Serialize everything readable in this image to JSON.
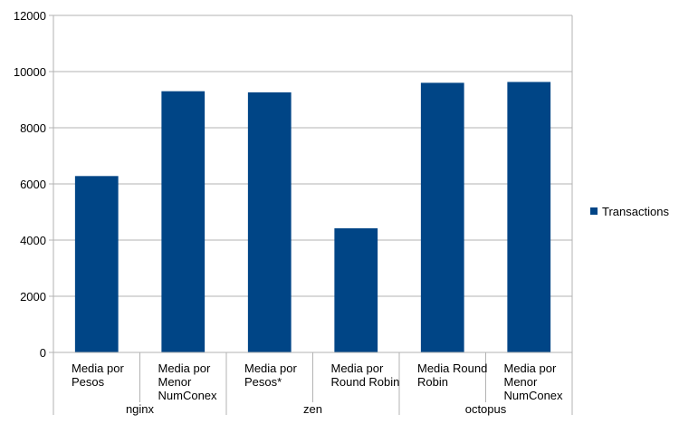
{
  "chart_data": {
    "type": "bar",
    "categories": [
      [
        "Media por",
        "Pesos"
      ],
      [
        "Media por",
        "Menor",
        "NumConex"
      ],
      [
        "Media por",
        "Pesos*"
      ],
      [
        "Media por",
        "Round Robin"
      ],
      [
        "Media Round",
        "Robin"
      ],
      [
        "Media por",
        "Menor",
        "NumConex"
      ]
    ],
    "groups": [
      {
        "label": "nginx",
        "count": 2
      },
      {
        "label": "zen",
        "count": 2
      },
      {
        "label": "octopus",
        "count": 2
      }
    ],
    "series": [
      {
        "name": "Transactions",
        "color": "#004586",
        "values": [
          6280,
          9300,
          9260,
          4420,
          9600,
          9630
        ]
      }
    ],
    "ylim": [
      0,
      12000
    ],
    "yticks": [
      "0",
      "2000",
      "4000",
      "6000",
      "8000",
      "10000",
      "12000"
    ],
    "grid": true,
    "legend": "right"
  }
}
